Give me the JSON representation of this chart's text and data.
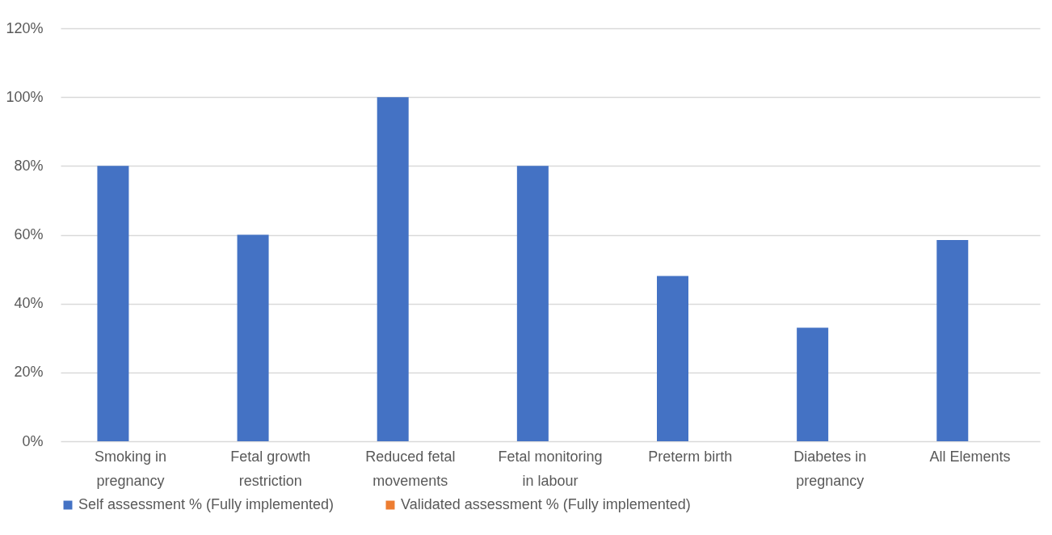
{
  "chart_data": {
    "type": "bar",
    "categories": [
      "Smoking in pregnancy",
      "Fetal growth restriction",
      "Reduced fetal movements",
      "Fetal monitoring in labour",
      "Preterm birth",
      "Diabetes in pregnancy",
      "All Elements"
    ],
    "series": [
      {
        "name": "Self assessment % (Fully implemented)",
        "color": "#4472c4",
        "values": [
          80,
          60,
          100,
          80,
          48,
          33,
          58.5
        ]
      },
      {
        "name": "Validated assessment % (Fully implemented)",
        "color": "#ed7d31",
        "values": [
          null,
          null,
          null,
          null,
          null,
          null,
          null
        ]
      }
    ],
    "ylim": [
      0,
      120
    ],
    "yticks": [
      {
        "value": 0,
        "label": "0%"
      },
      {
        "value": 20,
        "label": "20%"
      },
      {
        "value": 40,
        "label": "40%"
      },
      {
        "value": 60,
        "label": "60%"
      },
      {
        "value": 80,
        "label": "80%"
      },
      {
        "value": 100,
        "label": "100%"
      },
      {
        "value": 120,
        "label": "120%"
      }
    ],
    "grid": "y",
    "legend": "bottom"
  }
}
